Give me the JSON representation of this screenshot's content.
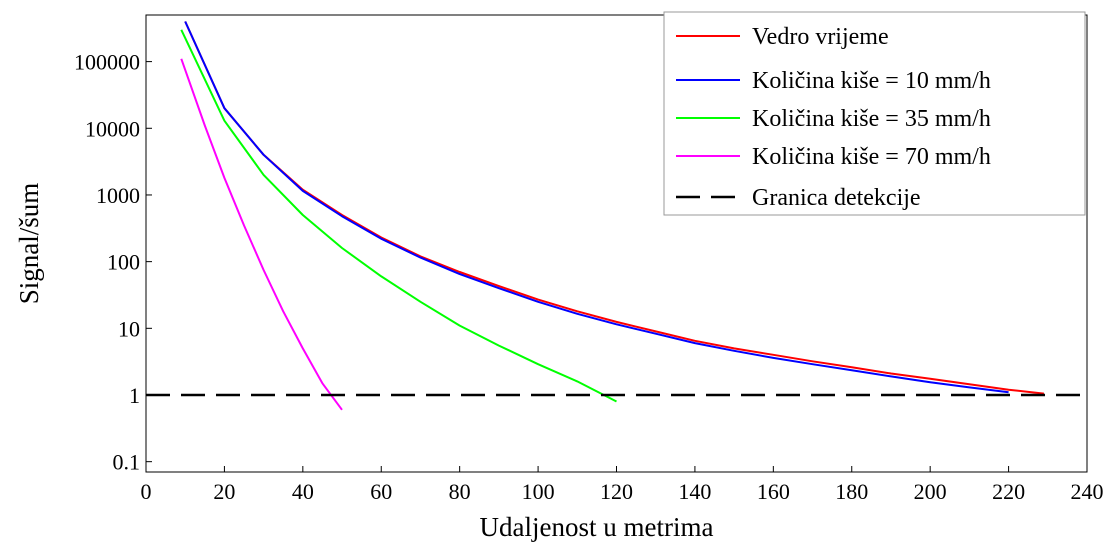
{
  "chart_data": {
    "type": "line",
    "title": "",
    "xlabel": "Udaljenost u metrima",
    "ylabel": "Signal/šum",
    "xlim": [
      0,
      240
    ],
    "ylim": [
      0.07,
      500000
    ],
    "yscale": "log",
    "x_ticks": [
      "0",
      "20",
      "40",
      "60",
      "80",
      "100",
      "120",
      "140",
      "160",
      "180",
      "200",
      "220",
      "240"
    ],
    "y_ticks": [
      "0.1",
      "1",
      "10",
      "100",
      "1000",
      "10000",
      "100000"
    ],
    "grid": false,
    "legend_position": "top-right",
    "series": [
      {
        "name": "Vedro vrijeme",
        "color": "#ff0000",
        "style": "solid",
        "x": [
          10,
          20,
          30,
          40,
          50,
          60,
          70,
          80,
          90,
          100,
          110,
          120,
          130,
          140,
          150,
          160,
          170,
          180,
          190,
          200,
          210,
          220,
          229
        ],
        "y": [
          400000,
          20000,
          4000,
          1200,
          500,
          230,
          120,
          70,
          43,
          27,
          18,
          12.5,
          9,
          6.5,
          5,
          4,
          3.2,
          2.6,
          2.1,
          1.75,
          1.45,
          1.2,
          1.05
        ]
      },
      {
        "name": "Količina kiše = 10 mm/h",
        "color": "#0000ff",
        "style": "solid",
        "x": [
          10,
          20,
          30,
          40,
          50,
          60,
          70,
          80,
          90,
          100,
          110,
          120,
          130,
          140,
          150,
          160,
          170,
          180,
          190,
          200,
          210,
          220
        ],
        "y": [
          400000,
          20000,
          4000,
          1150,
          480,
          220,
          115,
          65,
          40,
          25,
          16.5,
          11.5,
          8.3,
          6,
          4.6,
          3.6,
          2.9,
          2.35,
          1.9,
          1.55,
          1.3,
          1.1
        ]
      },
      {
        "name": "Količina kiše = 35 mm/h",
        "color": "#00ff00",
        "style": "solid",
        "x": [
          9,
          20,
          30,
          40,
          50,
          60,
          70,
          80,
          90,
          100,
          110,
          120
        ],
        "y": [
          300000,
          13000,
          2000,
          500,
          160,
          60,
          25,
          11,
          5.5,
          2.9,
          1.6,
          0.8
        ]
      },
      {
        "name": "Količina kiše = 70 mm/h",
        "color": "#ff00ff",
        "style": "solid",
        "x": [
          9,
          15,
          20,
          25,
          30,
          35,
          40,
          45,
          50
        ],
        "y": [
          110000,
          11000,
          1800,
          350,
          75,
          18,
          5,
          1.5,
          0.6
        ]
      },
      {
        "name": "Granica detekcije",
        "color": "#000000",
        "style": "dashed",
        "x": [
          0,
          240
        ],
        "y": [
          1,
          1
        ]
      }
    ]
  }
}
